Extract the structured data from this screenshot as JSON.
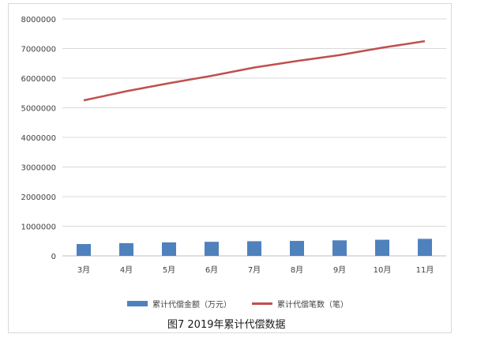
{
  "chart_data": {
    "type": "bar+line",
    "categories": [
      "3月",
      "4月",
      "5月",
      "6月",
      "7月",
      "8月",
      "9月",
      "10月",
      "11月"
    ],
    "series": [
      {
        "name": "累计代偿金额（万元）",
        "type": "bar",
        "color": "#4f81bd",
        "values": [
          400000,
          430000,
          455000,
          475000,
          495000,
          505000,
          525000,
          545000,
          575000
        ]
      },
      {
        "name": "累计代偿笔数（笔）",
        "type": "line",
        "color": "#c0504d",
        "values": [
          5250000,
          5560000,
          5830000,
          6080000,
          6360000,
          6580000,
          6780000,
          7030000,
          7250000
        ]
      }
    ],
    "yticks": [
      "0",
      "1000000",
      "2000000",
      "3000000",
      "4000000",
      "5000000",
      "6000000",
      "7000000",
      "8000000"
    ],
    "ylim": [
      0,
      8000000
    ],
    "grid": true,
    "legend_position": "bottom"
  },
  "caption": "图7   2019年累计代偿数据"
}
